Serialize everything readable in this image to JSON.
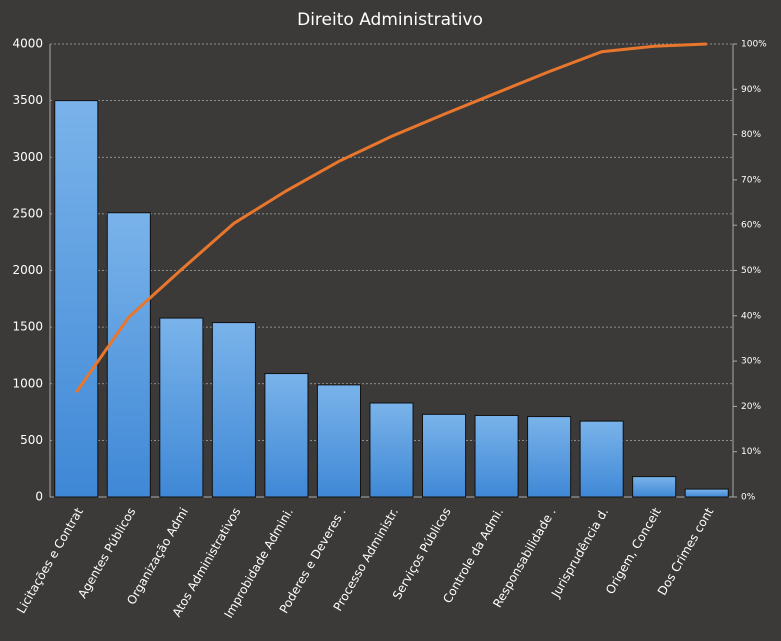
{
  "chart_data": {
    "type": "pareto",
    "title": "Direito Administrativo",
    "categories": [
      "Licitações e Contrat",
      "Agentes Públicos",
      "Organização Admi",
      "Atos Administrativos",
      "Improbidade Admini.",
      "Poderes e Deveres .",
      "Processo Administr.",
      "Serviços Públicos",
      "Controle da Admi.",
      "Responsabilidade .",
      "Jurisprudência d.",
      "Origem, Conceit",
      "Dos Crimes cont"
    ],
    "series": [
      {
        "type": "bar",
        "color": "#4a90d9",
        "values": [
          3500,
          2510,
          1580,
          1540,
          1090,
          990,
          830,
          730,
          720,
          710,
          670,
          180,
          70
        ]
      },
      {
        "type": "line",
        "axis": "y2",
        "color": "#e8762c",
        "values": [
          23.1,
          39.7,
          50.2,
          60.4,
          67.6,
          74.1,
          79.6,
          84.5,
          89.2,
          93.9,
          98.3,
          99.5,
          100
        ]
      }
    ],
    "ylim": [
      0,
      4000
    ],
    "yticks": [
      0,
      500,
      1000,
      1500,
      2000,
      2500,
      3000,
      3500,
      4000
    ],
    "y2lim": [
      0,
      100
    ],
    "y2ticks": [
      {
        "value": 0,
        "label": "0%"
      },
      {
        "value": 10,
        "label": "10%"
      },
      {
        "value": 20,
        "label": "20%"
      },
      {
        "value": 30,
        "label": "30%"
      },
      {
        "value": 40,
        "label": "40%"
      },
      {
        "value": 50,
        "label": "50%"
      },
      {
        "value": 60,
        "label": "60%"
      },
      {
        "value": 70,
        "label": "70%"
      },
      {
        "value": 80,
        "label": "80%"
      },
      {
        "value": 90,
        "label": "90%"
      },
      {
        "value": 100,
        "label": "100%"
      }
    ],
    "grid": true
  }
}
